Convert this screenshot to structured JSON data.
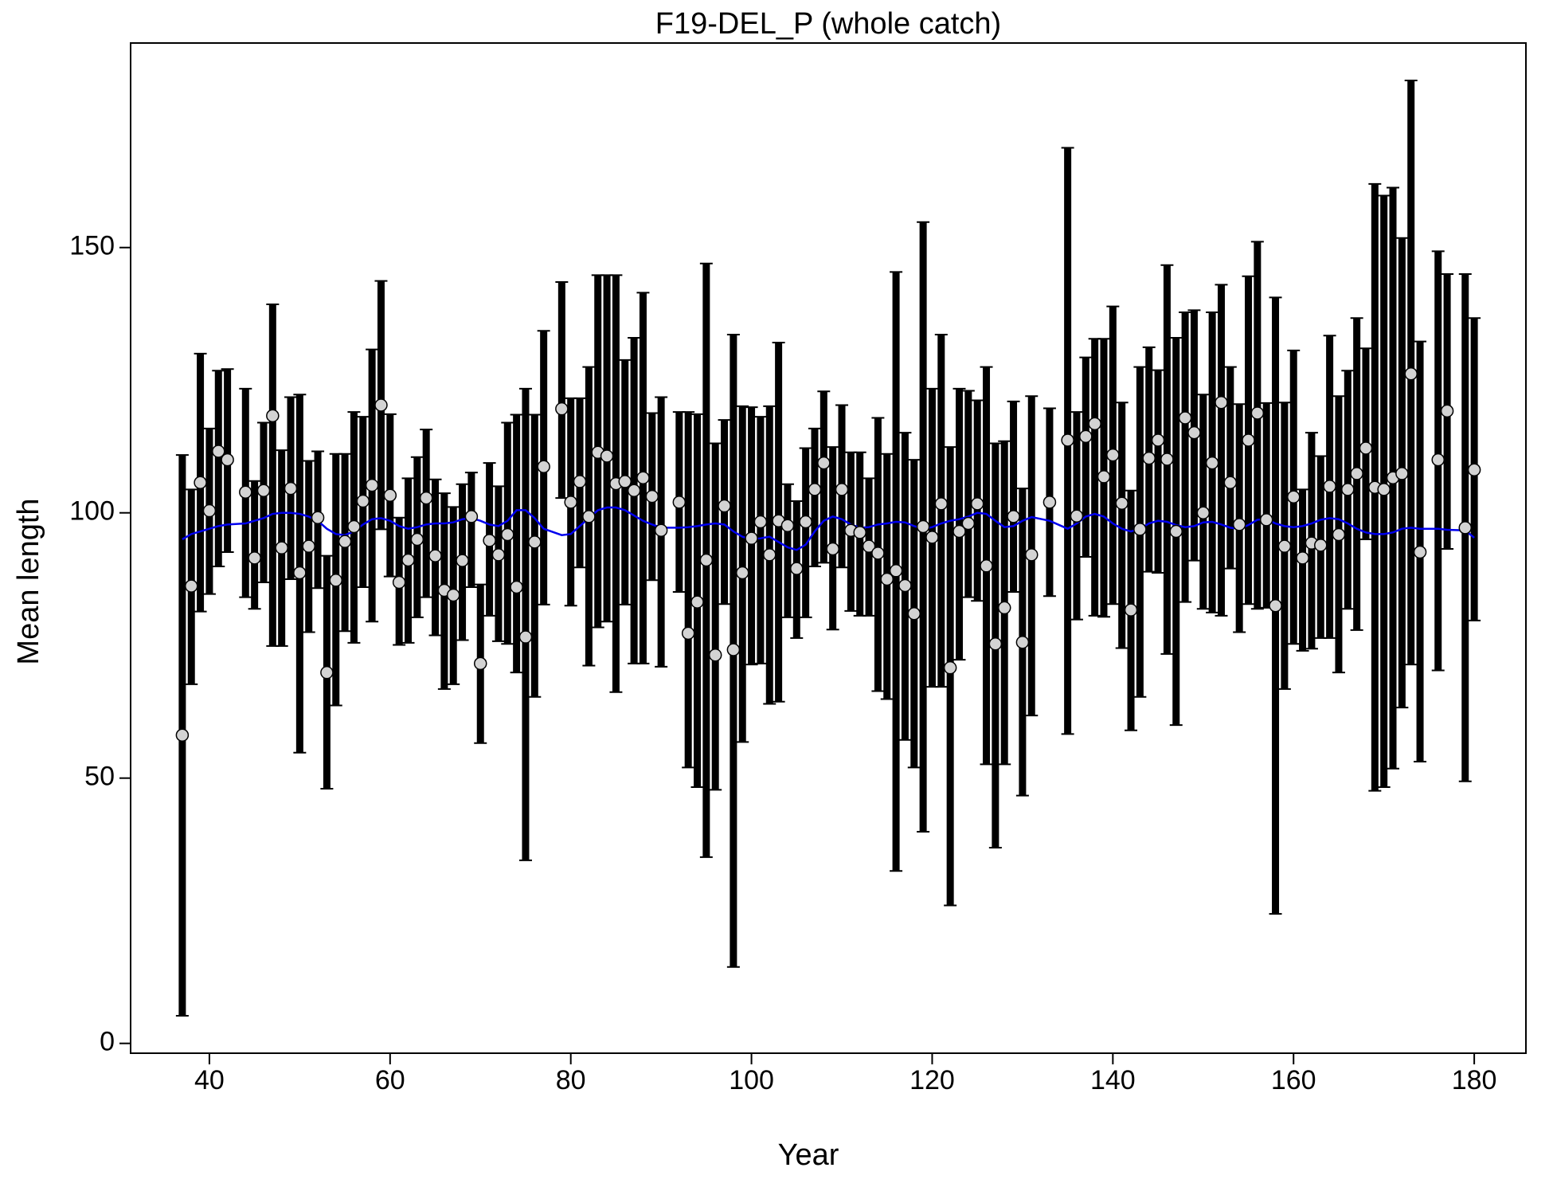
{
  "chart_data": {
    "type": "errorbar",
    "title": "F19-DEL_P (whole catch)",
    "xlabel": "Year",
    "ylabel": "Mean length",
    "xlim": [
      31.28,
      185.72
    ],
    "ylim": [
      -1.85,
      188.55
    ],
    "xticks": [
      40,
      60,
      80,
      100,
      120,
      140,
      160,
      180
    ],
    "yticks": [
      0,
      50,
      100,
      150
    ],
    "point_color": "#d3d3d3",
    "bar_color": "#000000",
    "line_color": "#0000ee",
    "x": [
      37,
      38,
      39,
      40,
      41,
      42,
      44,
      45,
      46,
      47,
      48,
      49,
      50,
      51,
      52,
      53,
      54,
      55,
      56,
      57,
      58,
      59,
      60,
      61,
      62,
      63,
      64,
      65,
      66,
      67,
      68,
      69,
      70,
      71,
      72,
      73,
      74,
      75,
      76,
      77,
      79,
      80,
      81,
      82,
      83,
      84,
      85,
      86,
      87,
      88,
      89,
      90,
      92,
      93,
      94,
      95,
      96,
      97,
      98,
      99,
      100,
      101,
      102,
      103,
      104,
      105,
      106,
      107,
      108,
      109,
      110,
      111,
      112,
      113,
      114,
      115,
      116,
      117,
      118,
      119,
      120,
      121,
      122,
      123,
      124,
      125,
      126,
      127,
      128,
      129,
      130,
      131,
      133,
      135,
      136,
      137,
      138,
      139,
      140,
      141,
      142,
      143,
      144,
      145,
      146,
      147,
      148,
      149,
      150,
      151,
      152,
      153,
      154,
      155,
      156,
      157,
      158,
      159,
      160,
      161,
      162,
      163,
      164,
      165,
      166,
      167,
      168,
      169,
      170,
      171,
      172,
      173,
      174,
      176,
      177,
      179,
      180
    ],
    "values": [
      58.1,
      86.2,
      105.7,
      100.4,
      111.6,
      110.0,
      103.9,
      91.5,
      104.2,
      118.3,
      93.4,
      104.6,
      88.7,
      93.7,
      99.1,
      69.9,
      87.3,
      94.6,
      97.4,
      102.2,
      105.2,
      120.3,
      103.3,
      86.9,
      91.1,
      95.0,
      102.8,
      91.9,
      85.4,
      84.5,
      91.0,
      99.3,
      71.6,
      94.8,
      92.1,
      95.9,
      86.0,
      76.6,
      94.5,
      108.7,
      119.6,
      102.0,
      105.9,
      99.3,
      111.4,
      110.7,
      105.5,
      105.9,
      104.2,
      106.6,
      103.1,
      96.7,
      102.0,
      77.3,
      83.2,
      91.1,
      73.2,
      101.3,
      74.2,
      88.7,
      95.2,
      98.3,
      92.1,
      98.5,
      97.6,
      89.5,
      98.3,
      104.4,
      109.4,
      93.2,
      104.4,
      96.7,
      96.3,
      93.7,
      92.4,
      87.5,
      89.1,
      86.3,
      81.0,
      97.4,
      95.4,
      101.7,
      70.8,
      96.5,
      98.0,
      101.7,
      90.0,
      75.3,
      82.1,
      99.3,
      75.6,
      92.1,
      102.0,
      113.7,
      99.4,
      114.4,
      116.8,
      106.8,
      110.9,
      101.8,
      81.7,
      96.9,
      110.3,
      113.7,
      110.1,
      96.5,
      117.9,
      115.1,
      100.0,
      109.4,
      120.8,
      105.7,
      97.8,
      113.7,
      118.8,
      98.7,
      82.5,
      93.7,
      103.0,
      91.5,
      94.3,
      93.9,
      105.0,
      95.9,
      104.4,
      107.4,
      112.2,
      104.8,
      104.4,
      106.6,
      107.4,
      126.2,
      92.6,
      110.0,
      119.2,
      97.2,
      108.1
    ],
    "lower": [
      5.2,
      67.7,
      81.4,
      84.7,
      89.9,
      92.6,
      84.1,
      81.9,
      86.9,
      74.9,
      74.9,
      87.5,
      54.8,
      77.5,
      85.8,
      48.0,
      63.7,
      77.7,
      75.5,
      86.0,
      79.5,
      96.9,
      88.0,
      75.1,
      75.5,
      80.3,
      84.1,
      76.9,
      66.8,
      67.7,
      76.0,
      86.0,
      56.6,
      80.6,
      75.8,
      75.3,
      69.9,
      34.5,
      65.3,
      82.7,
      102.8,
      82.5,
      89.7,
      71.2,
      78.4,
      79.5,
      66.2,
      82.7,
      71.6,
      71.6,
      87.3,
      71.0,
      85.1,
      52.0,
      48.3,
      35.1,
      47.8,
      82.8,
      14.4,
      56.8,
      71.4,
      71.6,
      64.0,
      64.4,
      80.3,
      76.4,
      80.3,
      89.9,
      90.6,
      78.0,
      89.7,
      81.5,
      80.6,
      80.6,
      66.4,
      64.9,
      32.5,
      57.2,
      52.0,
      39.9,
      67.2,
      67.2,
      26.0,
      72.3,
      84.1,
      83.4,
      52.6,
      36.9,
      52.6,
      85.1,
      46.7,
      61.8,
      84.3,
      58.3,
      79.9,
      91.7,
      80.6,
      80.4,
      82.8,
      74.5,
      59.0,
      65.3,
      88.9,
      88.7,
      73.4,
      60.0,
      83.2,
      91.0,
      81.9,
      81.2,
      80.6,
      89.5,
      77.5,
      82.8,
      81.9,
      82.1,
      24.4,
      66.8,
      75.3,
      74.0,
      74.4,
      76.4,
      76.4,
      69.9,
      81.9,
      77.9,
      95.0,
      47.6,
      48.3,
      51.8,
      63.3,
      71.4,
      53.1,
      70.3,
      93.2,
      49.4,
      79.7
    ],
    "upper": [
      110.9,
      104.4,
      130.0,
      115.9,
      126.8,
      127.1,
      123.4,
      106.0,
      117.0,
      139.3,
      111.8,
      121.8,
      122.3,
      109.8,
      111.6,
      91.9,
      111.1,
      111.1,
      119.0,
      118.1,
      130.8,
      143.7,
      118.6,
      99.1,
      106.5,
      110.5,
      115.7,
      106.3,
      103.7,
      101.1,
      105.4,
      107.6,
      86.5,
      109.4,
      105.0,
      117.0,
      118.5,
      123.4,
      118.5,
      134.3,
      143.5,
      121.6,
      121.6,
      127.5,
      144.8,
      144.8,
      144.8,
      128.8,
      133.0,
      141.5,
      118.8,
      121.8,
      119.0,
      119.0,
      118.6,
      147.0,
      113.1,
      117.5,
      133.6,
      120.1,
      119.9,
      118.1,
      120.1,
      132.1,
      105.4,
      102.2,
      112.2,
      115.9,
      122.9,
      112.4,
      120.3,
      111.4,
      111.4,
      106.5,
      117.9,
      111.1,
      145.4,
      115.1,
      110.0,
      154.8,
      123.4,
      133.6,
      112.4,
      123.4,
      123.0,
      121.2,
      127.5,
      113.1,
      113.5,
      121.0,
      104.6,
      122.0,
      119.7,
      168.8,
      119.0,
      129.3,
      132.8,
      132.8,
      138.9,
      120.8,
      104.2,
      127.5,
      131.2,
      126.9,
      146.7,
      133.0,
      137.8,
      138.2,
      122.3,
      137.8,
      143.0,
      127.5,
      120.5,
      144.6,
      151.1,
      120.7,
      140.6,
      120.8,
      130.6,
      104.4,
      115.1,
      110.7,
      133.4,
      122.0,
      126.8,
      136.7,
      131.0,
      162.0,
      159.8,
      161.3,
      151.8,
      181.5,
      132.3,
      149.3,
      145.0,
      145.0,
      136.7
    ],
    "expected": [
      95,
      96,
      96.5,
      97,
      97.5,
      97.8,
      98,
      98.5,
      99,
      99.8,
      100,
      100,
      99.8,
      99.3,
      98.5,
      97,
      96,
      95.8,
      96.5,
      97.8,
      98.8,
      99,
      98.5,
      97.5,
      97,
      97.3,
      97.8,
      98,
      98,
      98.2,
      98.8,
      99,
      98.5,
      97.8,
      97.5,
      98.5,
      100.5,
      100.5,
      99,
      97,
      95.8,
      96,
      97.5,
      99,
      100.5,
      101,
      101,
      100.5,
      99.5,
      98.5,
      97.8,
      97.2,
      97.2,
      97.3,
      97.5,
      97.8,
      98,
      97.8,
      96.5,
      95.5,
      95,
      95.2,
      95.5,
      94.5,
      93.5,
      93,
      94,
      96.5,
      98.5,
      99.3,
      98.8,
      97.8,
      97.2,
      97.3,
      97.8,
      98,
      98.3,
      98.2,
      97.5,
      97,
      97.3,
      98,
      98.5,
      98.8,
      99.3,
      100,
      99.8,
      98.5,
      97.3,
      97.5,
      98.5,
      99.2,
      98.5,
      97,
      98,
      99.3,
      99.8,
      99.3,
      98,
      97,
      96.5,
      97,
      98,
      98.5,
      98.3,
      97.7,
      97.3,
      97.5,
      98.2,
      98.3,
      97.8,
      97.2,
      97,
      97.7,
      98.7,
      98.8,
      98,
      97.5,
      97.3,
      97.5,
      98,
      98.7,
      99,
      98.8,
      98,
      97,
      96.3,
      96,
      96,
      96.3,
      97,
      97.2,
      97,
      97,
      96.8,
      96.7,
      95.3
    ]
  }
}
